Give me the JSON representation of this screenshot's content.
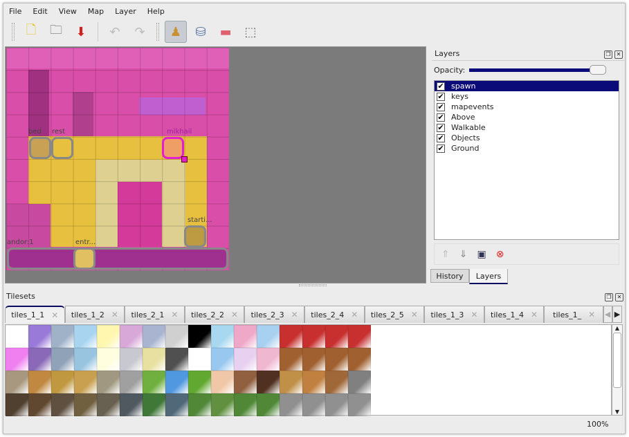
{
  "menu": [
    "File",
    "Edit",
    "View",
    "Map",
    "Layer",
    "Help"
  ],
  "toolbar": [
    {
      "name": "new-file-icon",
      "glyph": "🗋"
    },
    {
      "name": "open-folder-icon",
      "glyph": "🗀"
    },
    {
      "name": "save-icon",
      "glyph": "⬇"
    },
    {
      "name": "undo-icon",
      "glyph": "↶"
    },
    {
      "name": "redo-icon",
      "glyph": "↷"
    },
    {
      "name": "stamp-brush-icon",
      "glyph": "♟"
    },
    {
      "name": "bucket-fill-icon",
      "glyph": "⛁"
    },
    {
      "name": "eraser-icon",
      "glyph": "▬"
    },
    {
      "name": "rect-select-icon",
      "glyph": "⬚"
    }
  ],
  "map": {
    "objects": [
      "bed",
      "rest",
      "mikhail",
      "starti...",
      "andor:1",
      "entr..."
    ]
  },
  "layers_panel": {
    "title": "Layers",
    "opacity_label": "Opacity:",
    "opacity": 1.0,
    "layers": [
      {
        "name": "spawn",
        "visible": true,
        "selected": true
      },
      {
        "name": "keys",
        "visible": true
      },
      {
        "name": "mapevents",
        "visible": true
      },
      {
        "name": "Above",
        "visible": true
      },
      {
        "name": "Walkable",
        "visible": true
      },
      {
        "name": "Objects",
        "visible": true
      },
      {
        "name": "Ground",
        "visible": true
      }
    ],
    "tabs": [
      "History",
      "Layers"
    ],
    "active_tab": "Layers"
  },
  "tilesets": {
    "title": "Tilesets",
    "tabs": [
      "tiles_1_1",
      "tiles_1_2",
      "tiles_2_1",
      "tiles_2_2",
      "tiles_2_3",
      "tiles_2_4",
      "tiles_2_5",
      "tiles_1_3",
      "tiles_1_4",
      "tiles_1_"
    ],
    "active": "tiles_1_1",
    "tile_colors": [
      [
        "#ffffff",
        "#9a7ad8",
        "#9fb2c8",
        "#a8d4f0",
        "#fff7b0",
        "#d8a8d8",
        "#a8b4d0",
        "#d0d0d0",
        "#000000",
        "#a8d8f0",
        "#f0a8c8",
        "#a8d0f0",
        "#c83030",
        "#c83030",
        "#c83030",
        "#c83030"
      ],
      [
        "#f080f0",
        "#8a6ab8",
        "#8fa2b8",
        "#98c4e0",
        "#ffffe0",
        "#c8c8d0",
        "#e8e0a0",
        "#505050",
        "#ffffff",
        "#98c8f0",
        "#e8d0f0",
        "#f0b8d0",
        "#a06030",
        "#a06030",
        "#a06030",
        "#a06030"
      ],
      [
        "#a89880",
        "#c08840",
        "#c09840",
        "#c8a050",
        "#a09880",
        "#a0a0a0",
        "#70b040",
        "#5098e0",
        "#60a830",
        "#f0c8a8",
        "#906040",
        "#503020",
        "#c09048",
        "#c08040",
        "#a06838",
        "#808080"
      ],
      [
        "#504030",
        "#604830",
        "#605040",
        "#706040",
        "#686050",
        "#505860",
        "#407838",
        "#506878",
        "#508838",
        "#609040",
        "#508838",
        "#508838",
        "#909090",
        "#909090",
        "#909090",
        "#909090"
      ]
    ]
  },
  "status": {
    "zoom": "100%"
  }
}
